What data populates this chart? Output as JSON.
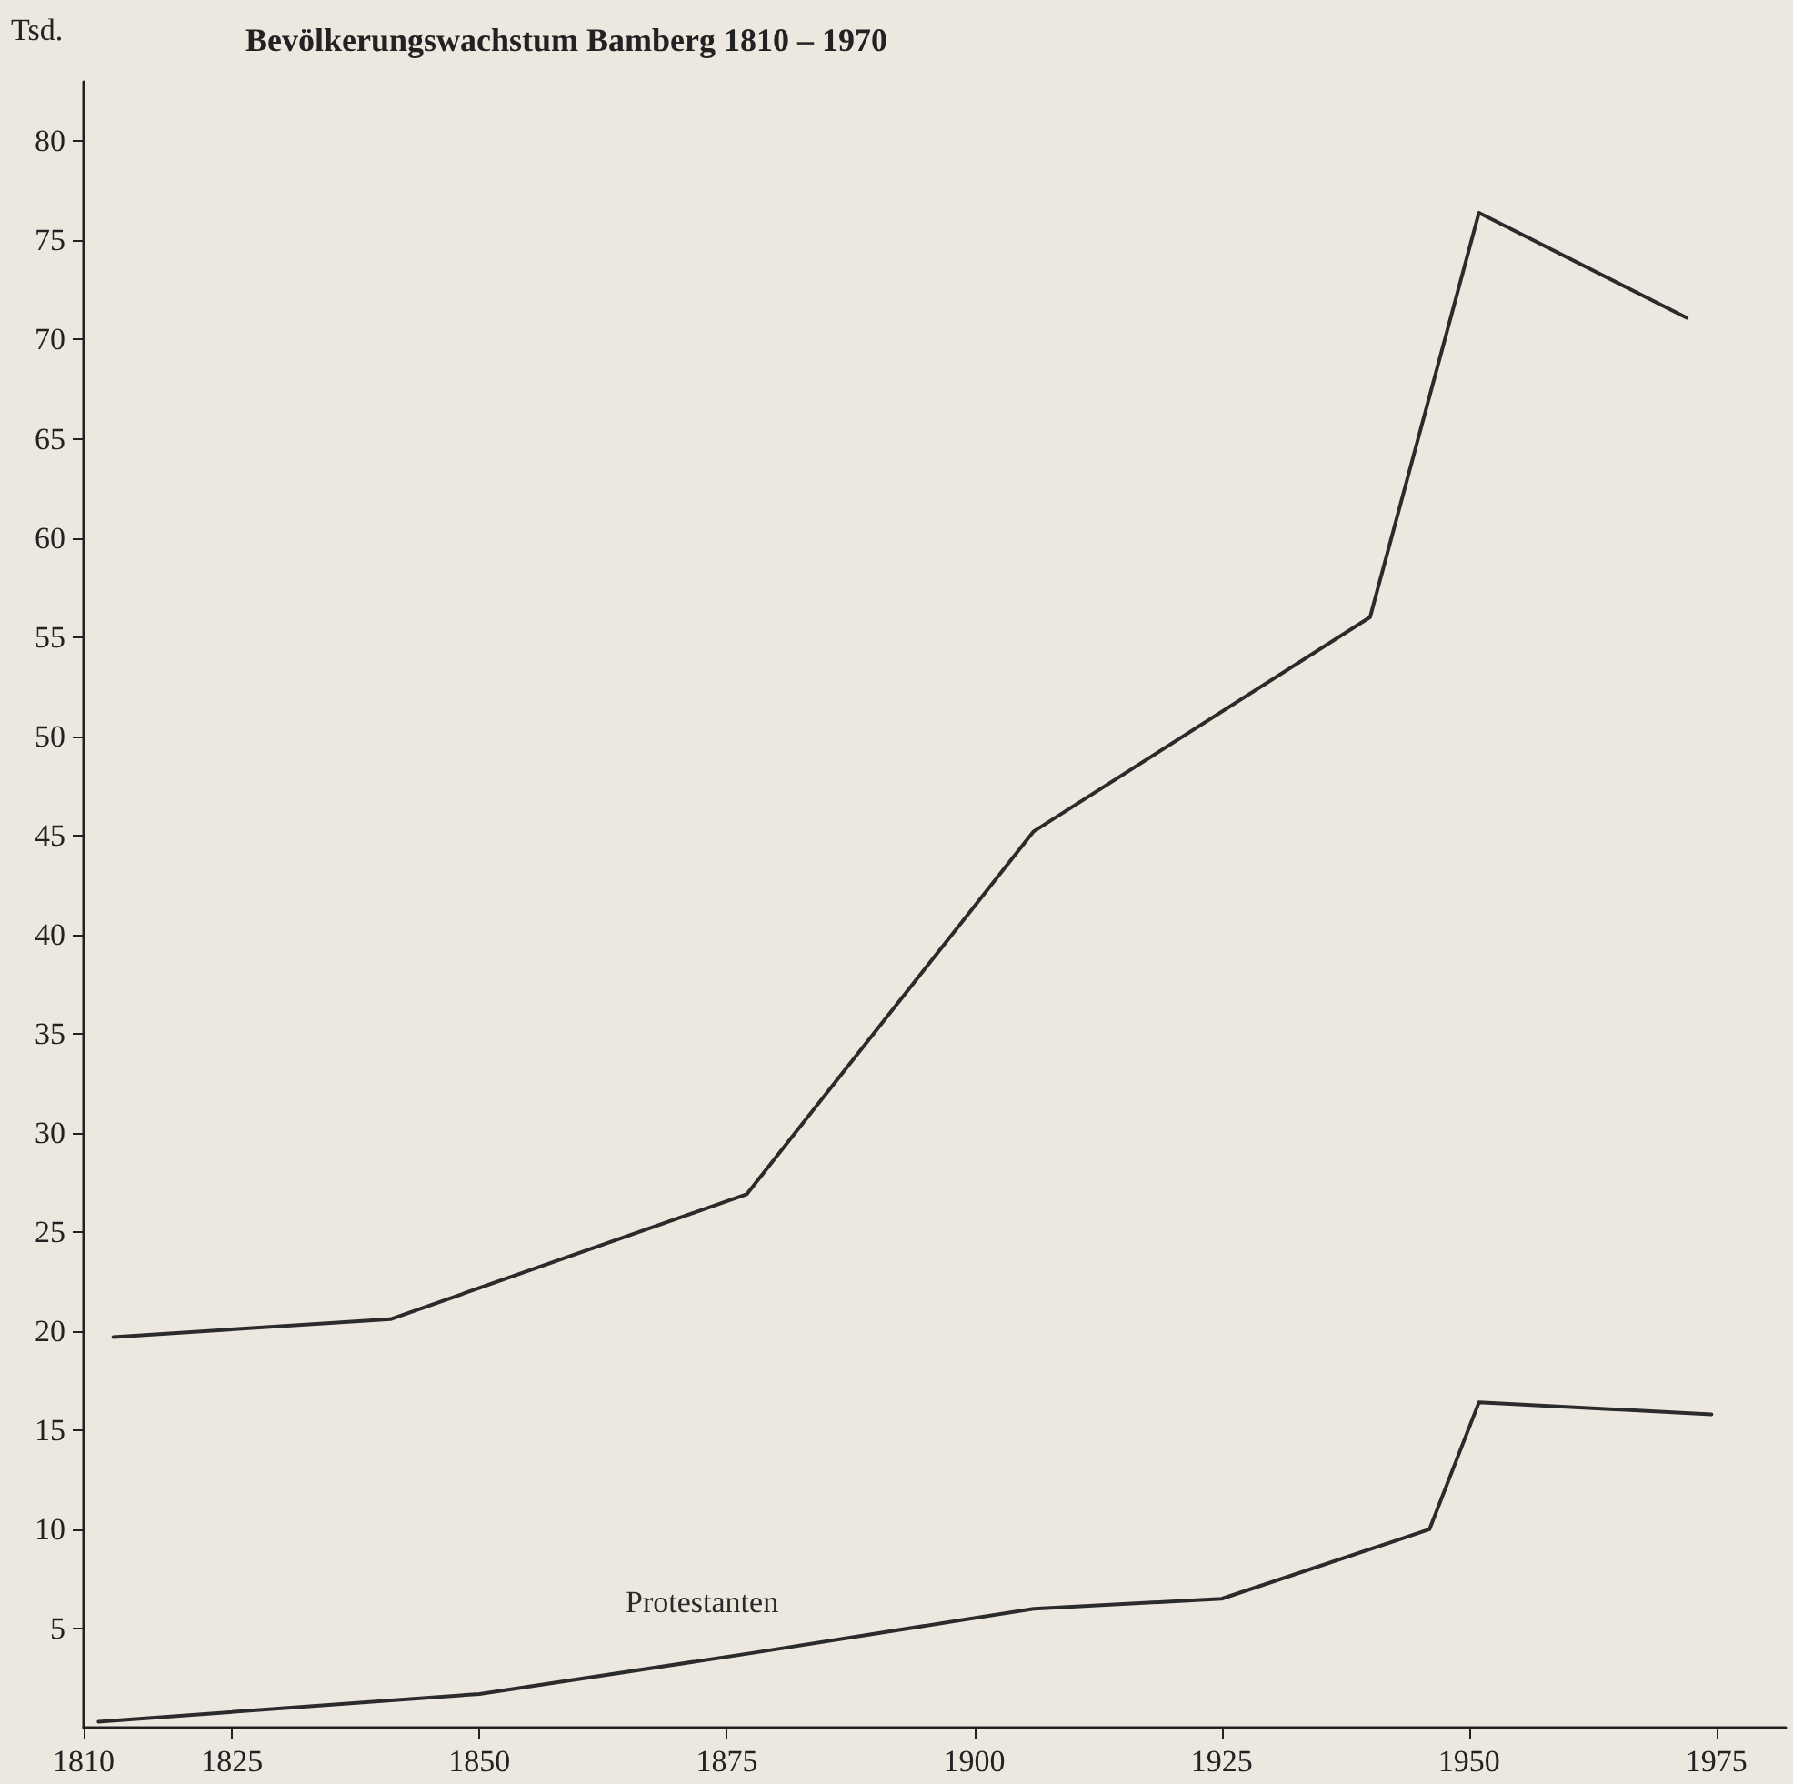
{
  "chart_data": {
    "type": "line",
    "title": "Bevölkerungswachstum Bamberg 1810 – 1970",
    "ylabel": "Tsd.",
    "xlim": [
      1810,
      1982
    ],
    "xticks": [
      1810,
      1825,
      1850,
      1875,
      1900,
      1925,
      1950,
      1975
    ],
    "ylim": [
      0,
      83
    ],
    "yticks": [
      5,
      10,
      15,
      20,
      25,
      30,
      35,
      40,
      45,
      50,
      55,
      60,
      65,
      70,
      75,
      80
    ],
    "grid": false,
    "legend": false,
    "marker": "none",
    "line_style": "solid",
    "series": [
      {
        "color": "#2b2b2b",
        "x": [
          1813,
          1841,
          1877,
          1906,
          1940,
          1951,
          1972
        ],
        "values": [
          19.7,
          20.6,
          26.9,
          45.2,
          56.0,
          76.4,
          71.1
        ]
      },
      {
        "name": "Protestanten",
        "color": "#2b2b2b",
        "x": [
          1811.5,
          1850,
          1878,
          1906,
          1925,
          1946,
          1951,
          1974.5
        ],
        "values": [
          0.3,
          1.7,
          3.8,
          6.0,
          6.5,
          10.0,
          16.4,
          15.8
        ]
      }
    ]
  }
}
